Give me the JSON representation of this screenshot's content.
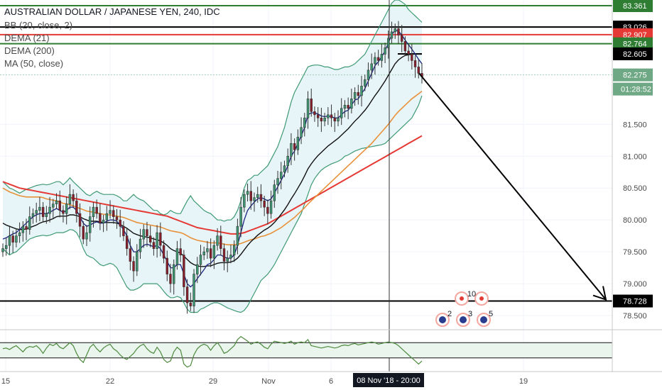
{
  "chart_data": {
    "type": "candlestick",
    "title": "AUSTRALIAN DOLLAR / JAPANESE YEN, 240, IDC",
    "indicators": [
      "BB (20, close, 2)",
      "DEMA (21)",
      "DEMA (200)",
      "MA (50, close)"
    ],
    "ylim": [
      78.3,
      83.45
    ],
    "y_ticks": [
      "81.500",
      "81.000",
      "80.500",
      "80.000",
      "79.500",
      "79.000",
      "78.500"
    ],
    "y_tick_values": [
      81.5,
      81.0,
      80.5,
      80.0,
      79.5,
      79.0,
      78.5
    ],
    "x_ticks": [
      "15",
      "22",
      "29",
      "Nov",
      "6",
      "19"
    ],
    "crosshair_date": "08 Nov '18 - 20:00",
    "countdown": "01:28:52",
    "price_tags": [
      {
        "label": "83.361",
        "value": 83.361,
        "color": "#2e7d32"
      },
      {
        "label": "83.026",
        "value": 83.026,
        "color": "#000000"
      },
      {
        "label": "82.907",
        "value": 82.907,
        "color": "#e53935"
      },
      {
        "label": "82.764",
        "value": 82.764,
        "color": "#2e7d32"
      },
      {
        "label": "82.605",
        "value": 82.605,
        "color": "#000000"
      },
      {
        "label": "82.275",
        "value": 82.275,
        "color": "#6fa884"
      },
      {
        "label": "78.728",
        "value": 78.728,
        "color": "#000000"
      }
    ],
    "close_series": [
      79.55,
      79.6,
      79.75,
      79.65,
      79.75,
      79.8,
      79.9,
      79.85,
      80.05,
      80.1,
      80.15,
      80.2,
      80.05,
      80.1,
      80.2,
      80.25,
      80.3,
      80.15,
      80.1,
      80.25,
      80.4,
      80.3,
      80.1,
      79.9,
      79.7,
      79.8,
      80.05,
      80.2,
      80.1,
      79.95,
      80.0,
      80.1,
      80.15,
      80.05,
      80.0,
      79.9,
      79.75,
      79.55,
      79.35,
      79.2,
      79.5,
      79.7,
      79.85,
      79.75,
      79.65,
      79.55,
      79.8,
      79.6,
      79.4,
      79.15,
      79.0,
      79.3,
      79.55,
      79.45,
      78.95,
      78.7,
      78.65,
      79.15,
      79.3,
      79.45,
      79.5,
      79.55,
      79.4,
      79.6,
      79.75,
      79.55,
      79.35,
      79.4,
      79.45,
      79.6,
      79.9,
      80.2,
      80.4,
      80.45,
      80.3,
      80.35,
      80.4,
      80.3,
      80.2,
      80.1,
      80.3,
      80.55,
      80.65,
      80.75,
      80.85,
      81.0,
      81.2,
      81.1,
      81.3,
      81.45,
      81.6,
      81.9,
      81.7,
      81.65,
      81.6,
      81.55,
      81.6,
      81.65,
      81.6,
      81.55,
      81.6,
      81.75,
      81.8,
      81.75,
      81.9,
      82.0,
      81.95,
      82.1,
      82.2,
      82.35,
      82.45,
      82.55,
      82.5,
      82.6,
      82.7,
      82.85,
      82.95,
      83.0,
      82.9,
      82.8,
      82.65,
      82.6,
      82.5,
      82.4,
      82.3,
      82.25
    ],
    "bb_upper": [
      80.6,
      80.55,
      80.5,
      80.48,
      80.45,
      80.42,
      80.45,
      80.48,
      80.5,
      80.52,
      80.54,
      80.55,
      80.56,
      80.55,
      80.56,
      80.58,
      80.6,
      80.6,
      80.55,
      80.6,
      80.66,
      80.6,
      80.55,
      80.5,
      80.45,
      80.4,
      80.38,
      80.42,
      80.45,
      80.42,
      80.4,
      80.4,
      80.4,
      80.4,
      80.38,
      80.35,
      80.3,
      80.3,
      80.35,
      80.4,
      80.35,
      80.32,
      80.3,
      80.25,
      80.2,
      80.15,
      80.15,
      80.1,
      80.08,
      80.1,
      80.15,
      80.12,
      80.1,
      80.1,
      80.2,
      80.3,
      80.38,
      80.3,
      80.25,
      80.2,
      80.15,
      80.12,
      80.1,
      80.05,
      80.0,
      80.0,
      79.98,
      80.0,
      80.0,
      80.05,
      80.15,
      80.3,
      80.5,
      80.62,
      80.65,
      80.7,
      80.7,
      80.75,
      80.8,
      80.85,
      80.95,
      81.05,
      81.15,
      81.3,
      81.45,
      81.65,
      81.85,
      82.0,
      82.1,
      82.2,
      82.3,
      82.4,
      82.42,
      82.43,
      82.43,
      82.42,
      82.4,
      82.4,
      82.38,
      82.36,
      82.36,
      82.38,
      82.4,
      82.4,
      82.42,
      82.45,
      82.5,
      82.55,
      82.6,
      82.7,
      82.8,
      82.9,
      83.0,
      83.1,
      83.2,
      83.3,
      83.4,
      83.45,
      83.45,
      83.42,
      83.38,
      83.3,
      83.25,
      83.2,
      83.15,
      83.1
    ],
    "bb_lower": [
      79.55,
      79.5,
      79.45,
      79.48,
      79.5,
      79.55,
      79.6,
      79.65,
      79.7,
      79.72,
      79.74,
      79.75,
      79.76,
      79.75,
      79.76,
      79.78,
      79.8,
      79.8,
      79.8,
      79.82,
      79.85,
      79.84,
      79.8,
      79.7,
      79.55,
      79.45,
      79.42,
      79.4,
      79.35,
      79.3,
      79.28,
      79.3,
      79.32,
      79.3,
      79.25,
      79.15,
      79.05,
      78.95,
      78.9,
      78.9,
      78.92,
      78.95,
      79.0,
      79.0,
      79.0,
      79.0,
      79.0,
      78.95,
      78.88,
      78.82,
      78.78,
      78.78,
      78.8,
      78.78,
      78.7,
      78.6,
      78.55,
      78.55,
      78.55,
      78.6,
      78.62,
      78.65,
      78.68,
      78.7,
      78.7,
      78.68,
      78.65,
      78.62,
      78.6,
      78.58,
      78.56,
      78.55,
      78.58,
      78.65,
      78.75,
      78.85,
      78.95,
      79.05,
      79.1,
      79.15,
      79.22,
      79.3,
      79.4,
      79.5,
      79.6,
      79.7,
      79.8,
      79.9,
      80.0,
      80.1,
      80.25,
      80.4,
      80.55,
      80.65,
      80.72,
      80.78,
      80.82,
      80.85,
      80.88,
      80.9,
      80.92,
      80.95,
      81.0,
      81.02,
      81.05,
      81.08,
      81.1,
      81.12,
      81.13,
      81.14,
      81.15,
      81.16,
      81.17,
      81.18,
      81.2,
      81.25,
      81.3,
      81.35,
      81.4,
      81.45,
      81.5,
      81.55,
      81.6,
      81.7,
      81.8,
      81.95
    ],
    "dema21": [
      79.7,
      79.72,
      79.75,
      79.78,
      79.8,
      79.85,
      79.9,
      79.95,
      80.0,
      80.05,
      80.08,
      80.1,
      80.1,
      80.1,
      80.12,
      80.15,
      80.18,
      80.15,
      80.12,
      80.15,
      80.2,
      80.2,
      80.15,
      80.05,
      79.95,
      79.9,
      79.92,
      79.95,
      79.97,
      79.95,
      79.95,
      79.98,
      80.0,
      80.0,
      79.98,
      79.92,
      79.85,
      79.75,
      79.6,
      79.5,
      79.5,
      79.55,
      79.6,
      79.62,
      79.6,
      79.58,
      79.6,
      79.55,
      79.45,
      79.35,
      79.25,
      79.25,
      79.3,
      79.3,
      79.15,
      79.0,
      78.95,
      79.0,
      79.08,
      79.15,
      79.22,
      79.3,
      79.32,
      79.38,
      79.45,
      79.45,
      79.42,
      79.4,
      79.4,
      79.45,
      79.6,
      79.8,
      80.0,
      80.15,
      80.22,
      80.28,
      80.33,
      80.35,
      80.33,
      80.3,
      80.33,
      80.42,
      80.52,
      80.62,
      80.72,
      80.85,
      81.0,
      81.08,
      81.2,
      81.32,
      81.45,
      81.65,
      81.68,
      81.68,
      81.66,
      81.63,
      81.62,
      81.63,
      81.62,
      81.6,
      81.6,
      81.65,
      81.7,
      81.72,
      81.8,
      81.88,
      81.9,
      81.98,
      82.06,
      82.18,
      82.3,
      82.42,
      82.48,
      82.56,
      82.65,
      82.78,
      82.9,
      82.98,
      82.96,
      82.9,
      82.82,
      82.75,
      82.68,
      82.6,
      82.52,
      82.45
    ],
    "dema200": [
      79.95,
      79.92,
      79.9,
      79.88,
      79.86,
      79.85,
      79.85,
      79.86,
      79.88,
      79.9,
      79.92,
      79.95,
      79.97,
      79.98,
      80.0,
      80.02,
      80.05,
      80.06,
      80.06,
      80.06,
      80.08,
      80.08,
      80.07,
      80.05,
      80.02,
      80.0,
      79.98,
      79.98,
      79.98,
      79.97,
      79.96,
      79.96,
      79.96,
      79.96,
      79.95,
      79.93,
      79.9,
      79.87,
      79.83,
      79.79,
      79.77,
      79.75,
      79.74,
      79.73,
      79.72,
      79.7,
      79.69,
      79.67,
      79.64,
      79.6,
      79.55,
      79.52,
      79.5,
      79.48,
      79.43,
      79.38,
      79.33,
      79.3,
      79.28,
      79.27,
      79.27,
      79.28,
      79.28,
      79.3,
      79.32,
      79.33,
      79.33,
      79.33,
      79.34,
      79.36,
      79.4,
      79.46,
      79.53,
      79.6,
      79.66,
      79.71,
      79.76,
      79.8,
      79.84,
      79.87,
      79.91,
      79.96,
      80.02,
      80.09,
      80.16,
      80.24,
      80.33,
      80.41,
      80.5,
      80.59,
      80.69,
      80.8,
      80.88,
      80.95,
      81.01,
      81.06,
      81.11,
      81.16,
      81.2,
      81.24,
      81.28,
      81.33,
      81.38,
      81.43,
      81.49,
      81.55,
      81.6,
      81.66,
      81.72,
      81.79,
      81.87,
      81.95,
      82.02,
      82.1,
      82.18,
      82.27,
      82.36,
      82.45,
      82.51,
      82.55,
      82.58,
      82.59,
      82.6,
      82.6,
      82.6,
      82.6
    ],
    "ma50": [
      80.5,
      80.47,
      80.44,
      80.42,
      80.4,
      80.38,
      80.37,
      80.36,
      80.36,
      80.36,
      80.36,
      80.36,
      80.35,
      80.33,
      80.32,
      80.31,
      80.3,
      80.28,
      80.26,
      80.25,
      80.24,
      80.22,
      80.2,
      80.18,
      80.16,
      80.14,
      80.13,
      80.12,
      80.11,
      80.1,
      80.09,
      80.08,
      80.08,
      80.07,
      80.06,
      80.05,
      80.04,
      80.02,
      80.0,
      79.98,
      79.96,
      79.95,
      79.94,
      79.93,
      79.92,
      79.91,
      79.9,
      79.89,
      79.87,
      79.85,
      79.83,
      79.82,
      79.81,
      79.8,
      79.78,
      79.75,
      79.72,
      79.7,
      79.68,
      79.67,
      79.66,
      79.65,
      79.64,
      79.64,
      79.64,
      79.63,
      79.62,
      79.61,
      79.61,
      79.61,
      79.62,
      79.63,
      79.65,
      79.67,
      79.69,
      79.7,
      79.72,
      79.74,
      79.75,
      79.77,
      79.79,
      79.82,
      79.85,
      79.88,
      79.92,
      79.96,
      80.0,
      80.04,
      80.09,
      80.14,
      80.19,
      80.25,
      80.3,
      80.35,
      80.4,
      80.45,
      80.5,
      80.55,
      80.6,
      80.65,
      80.7,
      80.75,
      80.8,
      80.85,
      80.9,
      80.95,
      81.0,
      81.05,
      81.1,
      81.15,
      81.2,
      81.26,
      81.32,
      81.38,
      81.44,
      81.5,
      81.57,
      81.64,
      81.7,
      81.75,
      81.8,
      81.85,
      81.9,
      81.94,
      81.98,
      82.02
    ],
    "ma_red": [
      80.6,
      80.58,
      80.56,
      80.54,
      80.52,
      80.5,
      80.49,
      80.48,
      80.47,
      80.46,
      80.45,
      80.44,
      80.43,
      80.42,
      80.41,
      80.4,
      80.39,
      80.38,
      80.37,
      80.36,
      80.35,
      80.34,
      80.33,
      80.32,
      80.31,
      80.3,
      80.29,
      80.28,
      80.27,
      80.26,
      80.25,
      80.24,
      80.23,
      80.22,
      80.21,
      80.2,
      80.19,
      80.18,
      80.17,
      80.16,
      80.15,
      80.14,
      80.13,
      80.12,
      80.11,
      80.1,
      80.09,
      80.08,
      80.07,
      80.06,
      80.04,
      80.02,
      80.0,
      79.98,
      79.96,
      79.94,
      79.92,
      79.9,
      79.88,
      79.87,
      79.86,
      79.85,
      79.84,
      79.83,
      79.82,
      79.81,
      79.8,
      79.79,
      79.78,
      79.78,
      79.78,
      79.79,
      79.8,
      79.82,
      79.84,
      79.86,
      79.88,
      79.9,
      79.92,
      79.94,
      79.97,
      80.0,
      80.03,
      80.06,
      80.09,
      80.12,
      80.15,
      80.18,
      80.21,
      80.24,
      80.27,
      80.3,
      80.33,
      80.36,
      80.39,
      80.42,
      80.45,
      80.48,
      80.51,
      80.54,
      80.57,
      80.6,
      80.63,
      80.66,
      80.69,
      80.72,
      80.75,
      80.78,
      80.81,
      80.84,
      80.87,
      80.9,
      80.93,
      80.96,
      80.99,
      81.02,
      81.05,
      81.08,
      81.11,
      81.14,
      81.17,
      81.2,
      81.23,
      81.26,
      81.29,
      81.32
    ],
    "cci": [
      20,
      30,
      10,
      40,
      60,
      20,
      -20,
      30,
      50,
      40,
      60,
      20,
      -40,
      30,
      80,
      60,
      90,
      40,
      20,
      60,
      100,
      60,
      -40,
      -120,
      -160,
      -60,
      40,
      80,
      20,
      -20,
      30,
      60,
      80,
      20,
      -10,
      -60,
      -100,
      -120,
      -80,
      -40,
      20,
      60,
      80,
      20,
      -20,
      -40,
      40,
      -20,
      -120,
      -160,
      -140,
      -20,
      40,
      0,
      -180,
      -220,
      -200,
      -60,
      20,
      60,
      80,
      60,
      0,
      60,
      100,
      40,
      -40,
      -20,
      20,
      60,
      140,
      180,
      150,
      120,
      80,
      100,
      110,
      80,
      40,
      20,
      80,
      120,
      110,
      100,
      90,
      100,
      120,
      80,
      100,
      110,
      100,
      140,
      60,
      50,
      40,
      30,
      40,
      50,
      40,
      30,
      40,
      60,
      70,
      60,
      80,
      90,
      70,
      80,
      90,
      100,
      110,
      100,
      80,
      90,
      100,
      110,
      100,
      90,
      60,
      20,
      -20,
      -60,
      -100,
      -140,
      -180,
      -140
    ],
    "annotations": {
      "event_count": "10",
      "markers": [
        "2",
        "3",
        "5"
      ]
    }
  }
}
